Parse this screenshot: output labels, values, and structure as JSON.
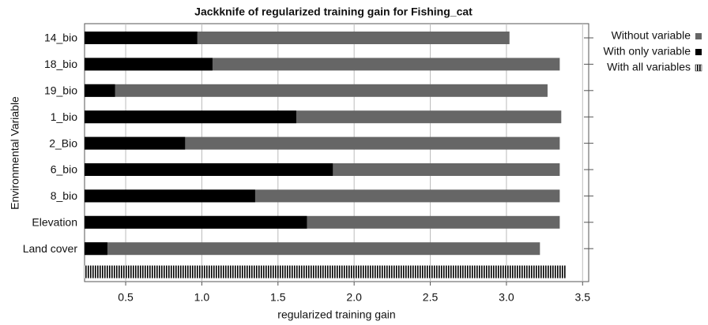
{
  "chart_data": {
    "type": "bar",
    "orientation": "horizontal",
    "title": "Jackknife of regularized training gain for Fishing_cat",
    "xlabel": "regularized training gain",
    "ylabel": "Environmental Variable",
    "categories": [
      "14_bio",
      "18_bio",
      "19_bio",
      "1_bio",
      "2_Bio",
      "6_bio",
      "8_bio",
      "Elevation",
      "Land cover"
    ],
    "series": [
      {
        "name": "Without variable",
        "color": "#666666",
        "values": [
          3.02,
          3.35,
          3.27,
          3.36,
          3.35,
          3.35,
          3.35,
          3.35,
          3.22
        ]
      },
      {
        "name": "With only variable",
        "color": "#000000",
        "values": [
          0.97,
          1.07,
          0.43,
          1.62,
          0.89,
          1.86,
          1.35,
          1.69,
          0.38
        ]
      }
    ],
    "all_variables": {
      "name": "With all variables",
      "value": 3.39
    },
    "xlim": [
      0.23,
      3.54
    ],
    "xticks": [
      0.5,
      {
        "value": 1,
        "label": "1.0"
      },
      1.5,
      {
        "value": 2,
        "label": "2.0"
      },
      2.5,
      {
        "value": 3,
        "label": "3.0"
      },
      3.5
    ],
    "grid": true
  }
}
